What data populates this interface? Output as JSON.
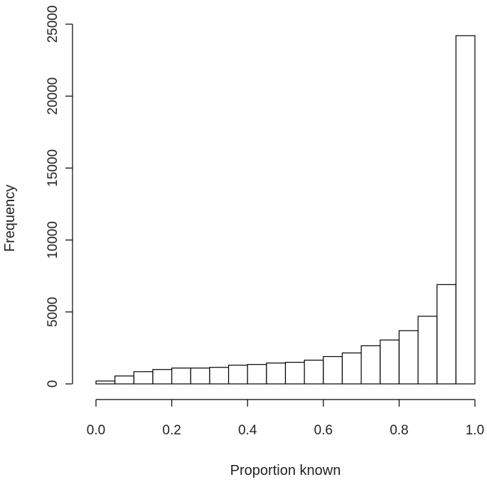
{
  "chart_data": {
    "type": "bar",
    "title": "",
    "xlabel": "Proportion known",
    "ylabel": "Frequency",
    "bin_edges": [
      0.0,
      0.05,
      0.1,
      0.15,
      0.2,
      0.25,
      0.3,
      0.35,
      0.4,
      0.45,
      0.5,
      0.55,
      0.6,
      0.65,
      0.7,
      0.75,
      0.8,
      0.85,
      0.9,
      0.95,
      1.0
    ],
    "values": [
      200,
      550,
      850,
      1000,
      1100,
      1100,
      1150,
      1300,
      1350,
      1450,
      1500,
      1650,
      1900,
      2150,
      2650,
      3050,
      3700,
      4700,
      6900,
      24200
    ],
    "xlim": [
      0.0,
      1.0
    ],
    "ylim": [
      0,
      25000
    ],
    "x_ticks": [
      0.0,
      0.2,
      0.4,
      0.6,
      0.8,
      1.0
    ],
    "x_tick_labels": [
      "0.0",
      "0.2",
      "0.4",
      "0.6",
      "0.8",
      "1.0"
    ],
    "y_ticks": [
      0,
      5000,
      10000,
      15000,
      20000,
      25000
    ],
    "y_tick_labels": [
      "0",
      "5000",
      "10000",
      "15000",
      "20000",
      "25000"
    ],
    "grid": false,
    "bar_fill": "#ffffff",
    "bar_stroke": "#000000"
  }
}
